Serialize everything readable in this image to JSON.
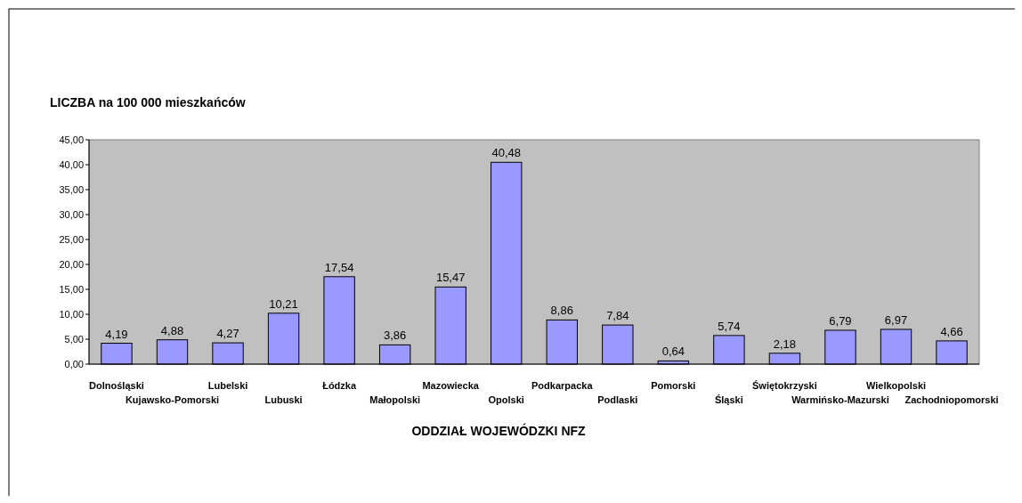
{
  "chart_data": {
    "type": "bar",
    "ylabel": "LICZBA  na 100 000 mieszkańców",
    "xlabel": "ODDZIAŁ WOJEWÓDZKI NFZ",
    "categories": [
      "Dolnośląski",
      "Kujawsko-Pomorski",
      "Lubelski",
      "Lubuski",
      "Łódzka",
      "Małopolski",
      "Mazowiecka",
      "Opolski",
      "Podkarpacka",
      "Podlaski",
      "Pomorski",
      "Śląski",
      "Świętokrzyski",
      "Warmińsko-Mazurski",
      "Wielkopolski",
      "Zachodniopomorski"
    ],
    "values": [
      4.19,
      4.88,
      4.27,
      10.21,
      17.54,
      3.86,
      15.47,
      40.48,
      8.86,
      7.84,
      0.64,
      5.74,
      2.18,
      6.79,
      6.97,
      4.66
    ],
    "value_labels": [
      "4,19",
      "4,88",
      "4,27",
      "10,21",
      "17,54",
      "3,86",
      "15,47",
      "40,48",
      "8,86",
      "7,84",
      "0,64",
      "5,74",
      "2,18",
      "6,79",
      "6,97",
      "4,66"
    ],
    "color": "#9999ff",
    "ylim": [
      0,
      45
    ],
    "yticks": [
      {
        "value": 0,
        "label": "0,00"
      },
      {
        "value": 5,
        "label": "5,00"
      },
      {
        "value": 10,
        "label": "10,00"
      },
      {
        "value": 15,
        "label": "15,00"
      },
      {
        "value": 20,
        "label": "20,00"
      },
      {
        "value": 25,
        "label": "25,00"
      },
      {
        "value": 30,
        "label": "30,00"
      },
      {
        "value": 35,
        "label": "35,00"
      },
      {
        "value": 40,
        "label": "40,00"
      },
      {
        "value": 45,
        "label": "45,00"
      }
    ]
  }
}
